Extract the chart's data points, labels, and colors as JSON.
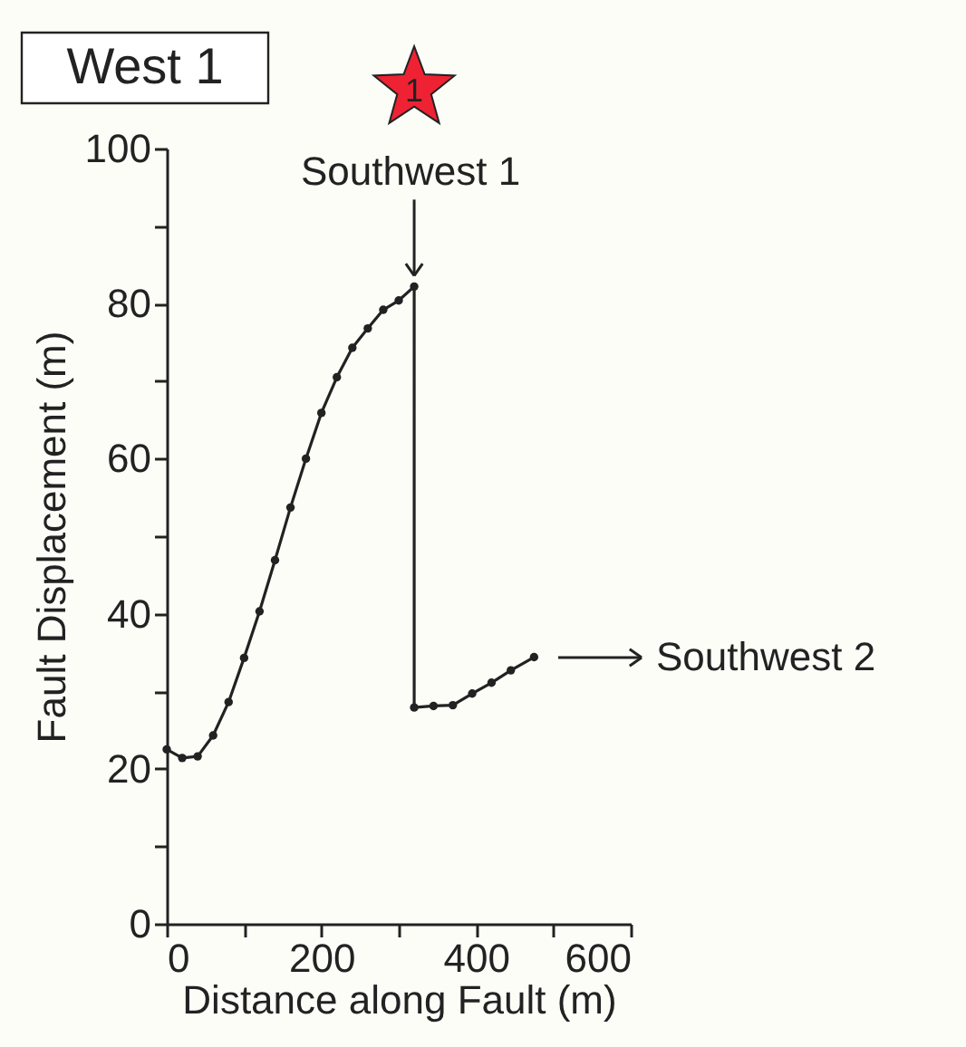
{
  "chart_data": {
    "type": "line",
    "title": "West 1",
    "xlabel": "Distance along Fault (m)",
    "ylabel": "Fault Displacement (m)",
    "x": [
      0,
      20,
      40,
      60,
      80,
      100,
      120,
      140,
      160,
      180,
      200,
      220,
      240,
      260,
      280,
      300,
      320,
      320,
      345,
      370,
      395,
      420,
      445,
      475
    ],
    "series": [
      {
        "color": "#222222",
        "values": [
          22.5,
          21.4,
          21.6,
          24.3,
          28.6,
          34.3,
          40.3,
          46.9,
          53.7,
          60.0,
          65.9,
          70.5,
          74.3,
          76.8,
          79.2,
          80.4,
          82.2,
          27.9,
          28.1,
          28.2,
          29.7,
          31.1,
          32.7,
          34.4
        ]
      }
    ],
    "xlim": [
      0,
      600
    ],
    "ylim": [
      0,
      100
    ],
    "xticks": [
      0,
      {
        "value": 100,
        "label": null
      },
      200,
      {
        "value": 300,
        "label": null
      },
      400,
      {
        "value": 500,
        "label": null
      },
      600
    ],
    "yticks": [
      0,
      {
        "value": 10,
        "label": null
      },
      20,
      {
        "value": 30,
        "label": null
      },
      40,
      {
        "value": 50,
        "label": null
      },
      60,
      {
        "value": 70,
        "label": null
      },
      80,
      {
        "value": 90,
        "label": null
      },
      100
    ],
    "marker": "circle",
    "line_style": "solid",
    "grid": false,
    "annotations": [
      {
        "text": "Southwest 1",
        "x": 320,
        "y": 82.2
      },
      "Southwest 2",
      "1"
    ]
  }
}
